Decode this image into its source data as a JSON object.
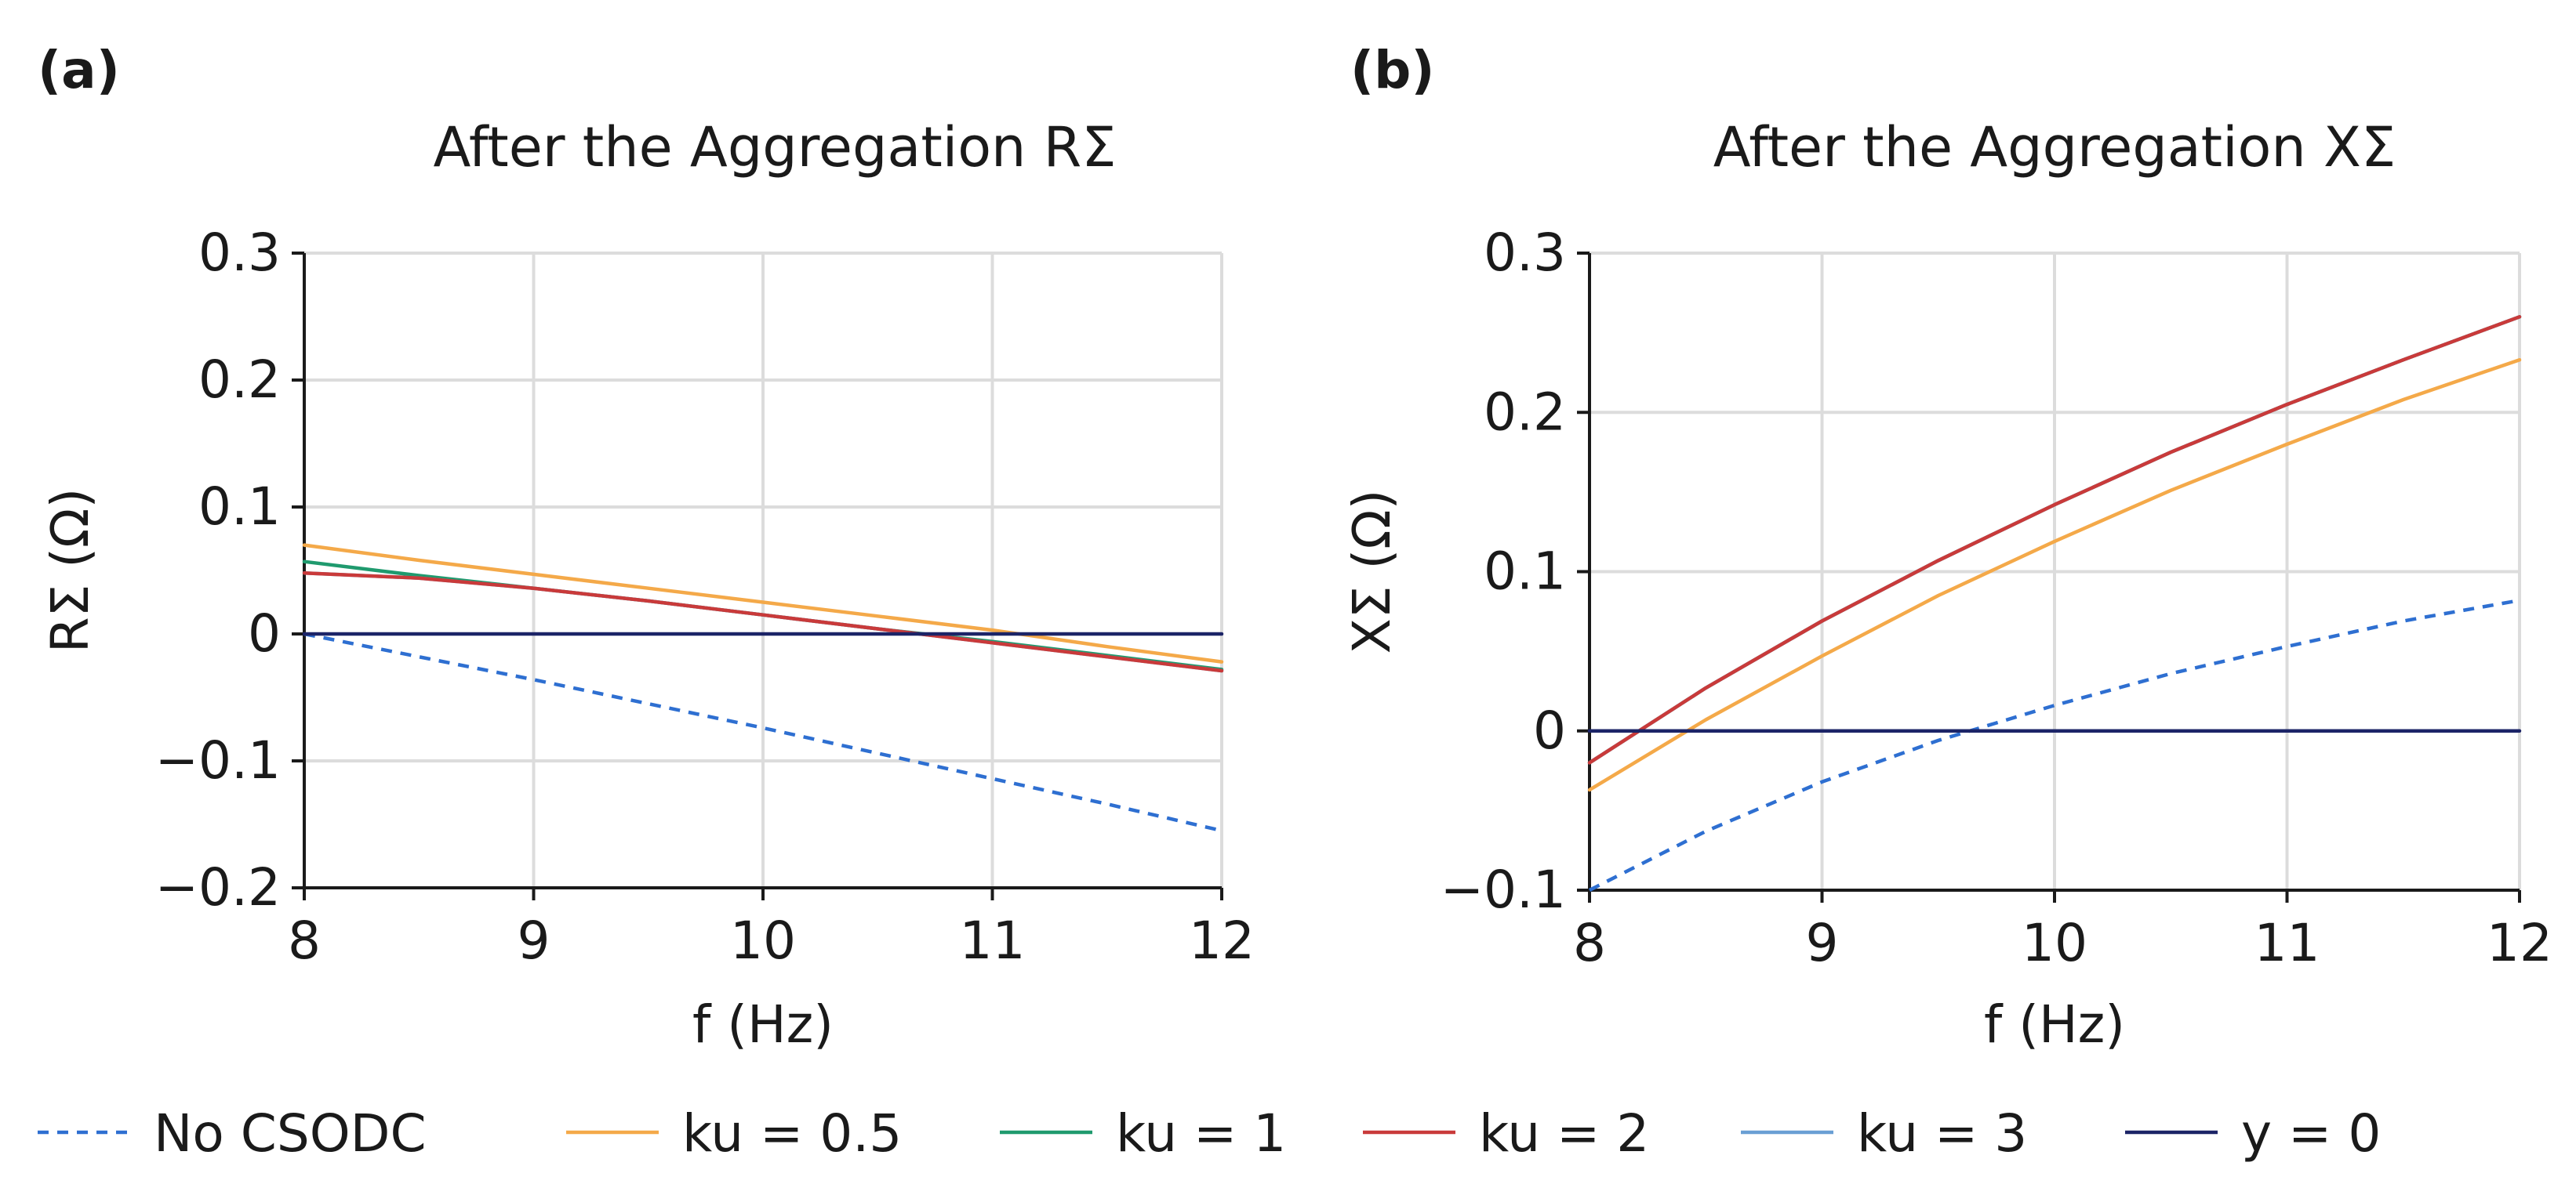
{
  "chart_data": [
    {
      "type": "line",
      "panel_label": "(a)",
      "title": "After the Aggregation  RΣ",
      "xlabel": "f (Hz)",
      "ylabel": "RΣ (Ω)",
      "xlim": [
        8,
        12
      ],
      "ylim": [
        -0.2,
        0.3
      ],
      "xticks": [
        8,
        9,
        10,
        11,
        12
      ],
      "xtick_labels": [
        "8",
        "9",
        "10",
        "11",
        "12"
      ],
      "yticks": [
        -0.2,
        -0.1,
        0,
        0.1,
        0.2,
        0.3
      ],
      "ytick_labels": [
        "−0.2",
        "−0.1",
        "0",
        "0.1",
        "0.2",
        "0.3"
      ],
      "grid": true,
      "x": [
        8,
        8.5,
        9,
        9.5,
        10,
        10.5,
        11,
        11.5,
        12
      ],
      "series": [
        {
          "name": "No CSODC",
          "color": "#2e6fd1",
          "dashed": true,
          "values": [
            0,
            -0.018,
            -0.036,
            -0.055,
            -0.074,
            -0.094,
            -0.114,
            -0.134,
            -0.155
          ]
        },
        {
          "name": "ku = 0.5",
          "color": "#f4a949",
          "dashed": false,
          "values": [
            0.07,
            0.058,
            0.047,
            0.036,
            0.025,
            0.014,
            0.003,
            -0.01,
            -0.022
          ]
        },
        {
          "name": "ku = 1",
          "color": "#1f9a6e",
          "dashed": false,
          "values": [
            0.057,
            0.046,
            0.036,
            0.026,
            0.015,
            0.004,
            -0.006,
            -0.017,
            -0.028
          ]
        },
        {
          "name": "ku = 2",
          "color": "#c93a3a",
          "dashed": false,
          "values": [
            0.048,
            0.044,
            0.036,
            0.026,
            0.015,
            0.004,
            -0.007,
            -0.018,
            -0.029
          ]
        },
        {
          "name": "ku = 3",
          "color": "#6a9fd4",
          "dashed": false,
          "values": [
            0.048,
            0.044,
            0.036,
            0.026,
            0.015,
            0.004,
            -0.007,
            -0.018,
            -0.029
          ]
        },
        {
          "name": "y = 0",
          "color": "#1c2467",
          "dashed": false,
          "values": [
            0,
            0,
            0,
            0,
            0,
            0,
            0,
            0,
            0
          ]
        }
      ]
    },
    {
      "type": "line",
      "panel_label": "(b)",
      "title": "After the Aggregation  XΣ",
      "xlabel": "f (Hz)",
      "ylabel": "XΣ (Ω)",
      "xlim": [
        8,
        12
      ],
      "ylim": [
        -0.1,
        0.3
      ],
      "xticks": [
        8,
        9,
        10,
        11,
        12
      ],
      "xtick_labels": [
        "8",
        "9",
        "10",
        "11",
        "12"
      ],
      "yticks": [
        -0.1,
        0,
        0.1,
        0.2,
        0.3
      ],
      "ytick_labels": [
        "−0.1",
        "0",
        "0.1",
        "0.2",
        "0.3"
      ],
      "grid": true,
      "x": [
        8,
        8.5,
        9,
        9.5,
        10,
        10.5,
        11,
        11.5,
        12
      ],
      "series": [
        {
          "name": "No CSODC",
          "color": "#2e6fd1",
          "dashed": true,
          "values": [
            -0.1,
            -0.063,
            -0.032,
            -0.006,
            0.016,
            0.036,
            0.053,
            0.069,
            0.082
          ]
        },
        {
          "name": "ku = 0.5",
          "color": "#f4a949",
          "dashed": false,
          "values": [
            -0.037,
            0.007,
            0.047,
            0.085,
            0.119,
            0.151,
            0.18,
            0.208,
            0.233
          ]
        },
        {
          "name": "ku = 1",
          "color": "#1f9a6e",
          "dashed": false,
          "values": [
            -0.02,
            0.027,
            0.069,
            0.107,
            0.142,
            0.175,
            0.205,
            0.233,
            0.26
          ]
        },
        {
          "name": "ku = 2",
          "color": "#c93a3a",
          "dashed": false,
          "values": [
            -0.02,
            0.027,
            0.069,
            0.107,
            0.142,
            0.175,
            0.205,
            0.233,
            0.26
          ]
        },
        {
          "name": "ku = 3",
          "color": "#6a9fd4",
          "dashed": false,
          "values": [
            -0.02,
            0.027,
            0.069,
            0.107,
            0.142,
            0.175,
            0.205,
            0.233,
            0.26
          ]
        },
        {
          "name": "y = 0",
          "color": "#1c2467",
          "dashed": false,
          "values": [
            0,
            0,
            0,
            0,
            0,
            0,
            0,
            0,
            0
          ]
        }
      ]
    }
  ],
  "legend": [
    {
      "label": "No CSODC",
      "color": "#2e6fd1",
      "dashed": true
    },
    {
      "label": "ku = 0.5",
      "color": "#f4a949",
      "dashed": false
    },
    {
      "label": "ku = 1",
      "color": "#1f9a6e",
      "dashed": false
    },
    {
      "label": "ku = 2",
      "color": "#c93a3a",
      "dashed": false
    },
    {
      "label": "ku = 3",
      "color": "#6a9fd4",
      "dashed": false
    },
    {
      "label": "y = 0",
      "color": "#1c2467",
      "dashed": false
    }
  ]
}
